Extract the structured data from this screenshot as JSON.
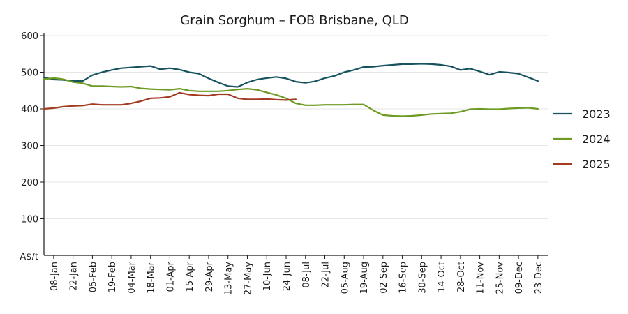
{
  "chart_data": {
    "type": "line",
    "title": "Grain Sorghum – FOB Brisbane, QLD",
    "ylabel": "A$/t",
    "ylim": [
      0,
      600
    ],
    "yticks": [
      600,
      500,
      400,
      300,
      200,
      100
    ],
    "grid": true,
    "legend_position": "right",
    "x_tick_labels": [
      "08-Jan",
      "22-Jan",
      "05-Feb",
      "19-Feb",
      "04-Mar",
      "18-Mar",
      "01-Apr",
      "15-Apr",
      "29-Apr",
      "13-May",
      "27-May",
      "10-Jun",
      "24-Jun",
      "08-Jul",
      "22-Jul",
      "05-Aug",
      "19-Aug",
      "02-Sep",
      "16-Sep",
      "30-Sep",
      "14-Oct",
      "28-Oct",
      "11-Nov",
      "25-Nov",
      "09-Dec",
      "23-Dec"
    ],
    "series": [
      {
        "name": "2023",
        "color": "#16535f",
        "values": [
          486,
          480,
          479,
          476,
          476,
          492,
          500,
          506,
          511,
          513,
          515,
          517,
          508,
          511,
          507,
          500,
          496,
          483,
          472,
          462,
          460,
          472,
          480,
          484,
          487,
          483,
          474,
          471,
          475,
          484,
          490,
          500,
          506,
          514,
          515,
          518,
          520,
          522,
          522,
          523,
          522,
          520,
          516,
          506,
          510,
          502,
          493,
          501,
          499,
          496,
          486,
          476
        ]
      },
      {
        "name": "2024",
        "color": "#6d9a23",
        "values": [
          481,
          484,
          481,
          473,
          470,
          462,
          462,
          461,
          460,
          461,
          456,
          454,
          453,
          452,
          455,
          450,
          448,
          448,
          448,
          450,
          453,
          455,
          452,
          445,
          438,
          429,
          415,
          410,
          410,
          411,
          411,
          411,
          412,
          412,
          396,
          383,
          381,
          380,
          381,
          383,
          386,
          387,
          388,
          392,
          399,
          400,
          399,
          399,
          401,
          402,
          403,
          400
        ]
      },
      {
        "name": "2025",
        "color": "#a33a22",
        "values": [
          400,
          402,
          406,
          408,
          409,
          413,
          411,
          411,
          411,
          415,
          421,
          429,
          430,
          433,
          444,
          439,
          437,
          436,
          440,
          440,
          429,
          426,
          426,
          427,
          425,
          424,
          426
        ]
      }
    ]
  }
}
